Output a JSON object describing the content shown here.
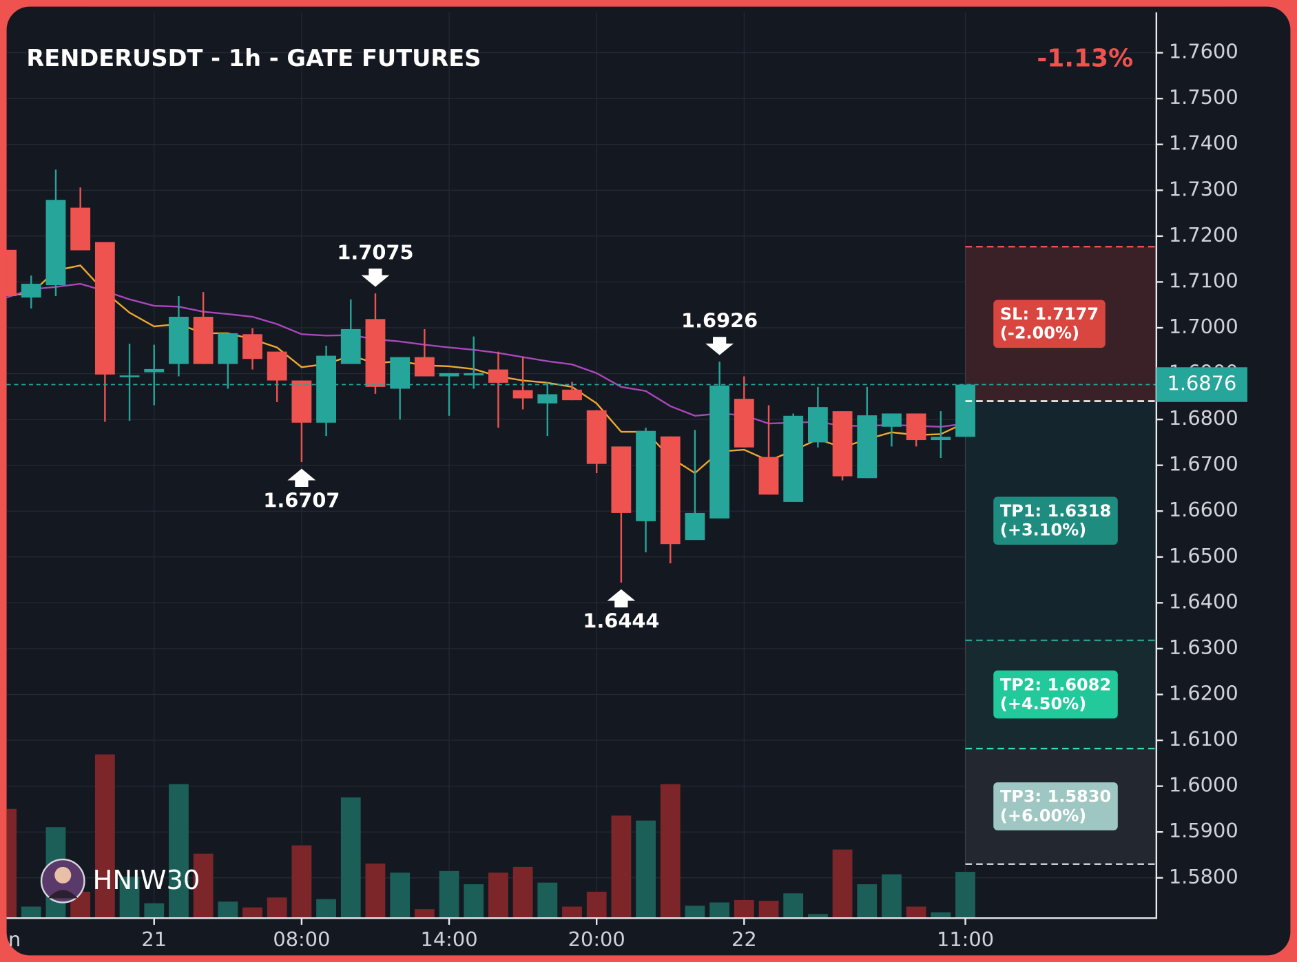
{
  "chart_data": {
    "type": "candlestick",
    "title": "RENDERUSDT - 1h - GATE FUTURES",
    "change_label": "-1.13%",
    "watermark": "HNIW30",
    "categories": [
      "n",
      null,
      null,
      null,
      null,
      null,
      "21",
      null,
      null,
      null,
      null,
      null,
      "08:00",
      null,
      null,
      null,
      null,
      null,
      "14:00",
      null,
      null,
      null,
      null,
      null,
      "20:00",
      null,
      null,
      null,
      null,
      null,
      "22",
      null,
      null,
      null,
      null,
      null,
      null,
      null,
      null,
      "11:00"
    ],
    "open": [
      1.717,
      1.7066,
      1.7093,
      1.7262,
      1.7187,
      1.6892,
      1.6903,
      1.6921,
      1.7024,
      1.6921,
      1.6986,
      1.6948,
      1.6885,
      1.6793,
      1.6921,
      1.7019,
      1.6867,
      1.6936,
      1.6894,
      1.6896,
      1.6909,
      1.6864,
      1.6835,
      1.6865,
      1.682,
      1.6741,
      1.6578,
      1.6763,
      1.6537,
      1.6584,
      1.6845,
      1.6718,
      1.662,
      1.675,
      1.6818,
      1.6672,
      1.6784,
      1.6813,
      1.6755,
      1.6762
    ],
    "high": [
      1.717,
      1.7114,
      1.7345,
      1.7306,
      1.7187,
      1.6965,
      1.6963,
      1.7069,
      1.7078,
      1.6988,
      1.6999,
      1.6948,
      1.6885,
      1.6961,
      1.7062,
      1.7075,
      1.6936,
      1.6997,
      1.6901,
      1.6981,
      1.6948,
      1.6936,
      1.6882,
      1.6882,
      1.682,
      1.6741,
      1.6782,
      1.6763,
      1.6777,
      1.6926,
      1.6894,
      1.6831,
      1.6813,
      1.6871,
      1.6818,
      1.6871,
      1.6813,
      1.6813,
      1.6818,
      1.6876
    ],
    "low": [
      1.7069,
      1.7042,
      1.7069,
      1.7169,
      1.6795,
      1.6797,
      1.6831,
      1.6894,
      1.6921,
      1.6867,
      1.6909,
      1.6838,
      1.6707,
      1.6764,
      1.6921,
      1.6856,
      1.68,
      1.6894,
      1.6808,
      1.6867,
      1.6782,
      1.6822,
      1.6764,
      1.6842,
      1.6683,
      1.6444,
      1.651,
      1.6486,
      1.6537,
      1.6584,
      1.6739,
      1.6636,
      1.662,
      1.6739,
      1.6667,
      1.6672,
      1.6741,
      1.6741,
      1.6716,
      1.6762
    ],
    "close": [
      1.7069,
      1.7096,
      1.7279,
      1.7169,
      1.6898,
      1.6896,
      1.691,
      1.7024,
      1.6921,
      1.6988,
      1.6932,
      1.6885,
      1.6793,
      1.6939,
      1.6997,
      1.6871,
      1.6936,
      1.6894,
      1.6901,
      1.6901,
      1.688,
      1.6846,
      1.6855,
      1.6842,
      1.6703,
      1.6596,
      1.6775,
      1.6528,
      1.6596,
      1.6874,
      1.6739,
      1.6636,
      1.6808,
      1.6827,
      1.6676,
      1.6809,
      1.6813,
      1.6755,
      1.6762,
      1.6876
    ],
    "volume": [
      132,
      14,
      110,
      32,
      198,
      50,
      18,
      162,
      78,
      20,
      13,
      25,
      88,
      23,
      146,
      66,
      55,
      11,
      57,
      41,
      55,
      62,
      43,
      14,
      32,
      124,
      118,
      162,
      15,
      19,
      22,
      21,
      30,
      5,
      83,
      41,
      53,
      14,
      7,
      56
    ],
    "up_color": "#26a69a",
    "down_color": "#ef5350",
    "volume_up_color": "#1b5f58",
    "volume_down_color": "#7c2629",
    "moving_averages": [
      {
        "color": "#f0a830",
        "values": [
          1.7071,
          1.7075,
          1.7125,
          1.7136,
          1.7078,
          1.7033,
          1.7003,
          1.7008,
          1.6988,
          1.6988,
          1.6975,
          1.6957,
          1.6914,
          1.6921,
          1.6939,
          1.6923,
          1.6927,
          1.6918,
          1.6916,
          1.691,
          1.6894,
          1.6885,
          1.688,
          1.6871,
          1.6835,
          1.6773,
          1.6773,
          1.6717,
          1.6683,
          1.673,
          1.6734,
          1.671,
          1.6732,
          1.6757,
          1.6739,
          1.6757,
          1.6772,
          1.6766,
          1.6768,
          1.6793
        ]
      },
      {
        "color": "#ab47bc",
        "values": [
          1.7066,
          1.7084,
          1.7089,
          1.7096,
          1.708,
          1.7062,
          1.7048,
          1.7046,
          1.7035,
          1.703,
          1.7024,
          1.7008,
          1.6986,
          1.6983,
          1.6984,
          1.6975,
          1.697,
          1.6963,
          1.6957,
          1.6952,
          1.6945,
          1.6936,
          1.6927,
          1.692,
          1.6901,
          1.6871,
          1.6862,
          1.6829,
          1.6808,
          1.6813,
          1.6809,
          1.6791,
          1.6793,
          1.6795,
          1.6786,
          1.6786,
          1.6788,
          1.6786,
          1.6784,
          1.6791
        ]
      }
    ],
    "extremes": [
      {
        "kind": "low",
        "index": 12
      },
      {
        "kind": "high",
        "index": 15
      },
      {
        "kind": "low",
        "index": 25
      },
      {
        "kind": "high",
        "index": 29
      }
    ],
    "entry": 1.684,
    "levels": [
      {
        "price": 1.7177,
        "label": "SL: 1.7177",
        "change_label": "(-2.00%)",
        "color": "#ef5350",
        "box_color": "#d9463f",
        "zone_color": "#3a2127"
      },
      {
        "price": 1.6318,
        "label": "TP1: 1.6318",
        "change_label": "(+3.10%)",
        "color": "#2a9d8f",
        "box_color": "#1f8c80",
        "zone_color": "#15252d"
      },
      {
        "price": 1.6082,
        "label": "TP2: 1.6082",
        "change_label": "(+4.50%)",
        "color": "#2fe0b0",
        "box_color": "#22c99b",
        "zone_color": "#172a30"
      },
      {
        "price": 1.583,
        "label": "TP3: 1.5830",
        "change_label": "(+6.00%)",
        "color": "#c8cdd4",
        "box_color": "#9ec6c2",
        "zone_color": "#23272f"
      }
    ],
    "ylim": [
      1.5712,
      1.7688
    ],
    "yticks": [
      {
        "value": 1.76,
        "label": "1.7600"
      },
      {
        "value": 1.75,
        "label": "1.7500"
      },
      {
        "value": 1.74,
        "label": "1.7400"
      },
      {
        "value": 1.73,
        "label": "1.7300"
      },
      {
        "value": 1.72,
        "label": "1.7200"
      },
      {
        "value": 1.71,
        "label": "1.7100"
      },
      {
        "value": 1.7,
        "label": "1.7000"
      },
      {
        "value": 1.69,
        "label": "1.6900"
      },
      {
        "value": 1.68,
        "label": "1.6800"
      },
      {
        "value": 1.67,
        "label": "1.6700"
      },
      {
        "value": 1.66,
        "label": "1.6600"
      },
      {
        "value": 1.65,
        "label": "1.6500"
      },
      {
        "value": 1.64,
        "label": "1.6400"
      },
      {
        "value": 1.63,
        "label": "1.6300"
      },
      {
        "value": 1.62,
        "label": "1.6200"
      },
      {
        "value": 1.61,
        "label": "1.6100"
      },
      {
        "value": 1.6,
        "label": "1.6000"
      },
      {
        "value": 1.59,
        "label": "1.5900"
      },
      {
        "value": 1.58,
        "label": "1.5800"
      }
    ],
    "grid": true
  }
}
